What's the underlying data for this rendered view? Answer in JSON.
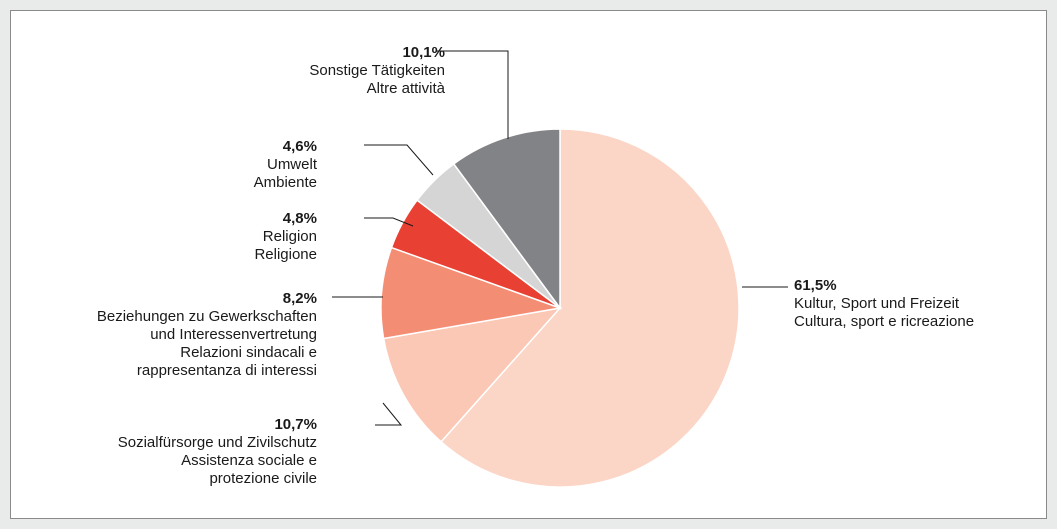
{
  "chart_data": {
    "type": "pie",
    "slices": [
      {
        "value": 61.5,
        "pct_label": "61,5%",
        "lines": [
          "Kultur, Sport und Freizeit",
          "Cultura, sport e ricreazione"
        ],
        "color": "#fbd5c5"
      },
      {
        "value": 10.7,
        "pct_label": "10,7%",
        "lines": [
          "Sozialfürsorge und Zivilschutz",
          "Assistenza sociale e",
          "protezione civile"
        ],
        "color": "#fbc8b5"
      },
      {
        "value": 8.2,
        "pct_label": "8,2%",
        "lines": [
          "Beziehungen zu Gewerkschaften",
          "und Interessenvertretung",
          "Relazioni sindacali e",
          "rappresentanza di interessi"
        ],
        "color": "#f38d74"
      },
      {
        "value": 4.8,
        "pct_label": "4,8%",
        "lines": [
          "Religion",
          "Religione"
        ],
        "color": "#e84032"
      },
      {
        "value": 4.6,
        "pct_label": "4,6%",
        "lines": [
          "Umwelt",
          "Ambiente"
        ],
        "color": "#d5d5d6"
      },
      {
        "value": 10.1,
        "pct_label": "10,1%",
        "lines": [
          "Sonstige Tätigkeiten",
          "Altre attività"
        ],
        "color": "#828386"
      }
    ]
  }
}
